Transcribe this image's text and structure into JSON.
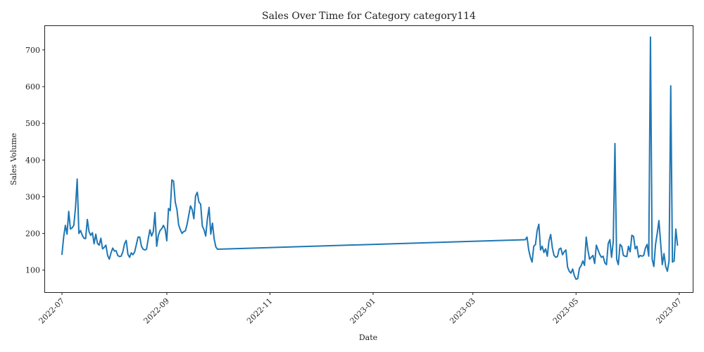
{
  "chart_data": {
    "type": "line",
    "title": "Sales Over Time for Category category114",
    "xlabel": "Date",
    "ylabel": "Sales Volume",
    "xlim": [
      "2022-06-21",
      "2023-07-09"
    ],
    "ylim": [
      40,
      765
    ],
    "x_ticks": [
      "2022-07-01",
      "2022-09-01",
      "2022-11-01",
      "2023-01-01",
      "2023-03-01",
      "2023-05-01",
      "2023-07-01"
    ],
    "x_tick_labels": [
      "2022-07",
      "2022-09",
      "2022-11",
      "2023-01",
      "2023-03",
      "2023-05",
      "2023-07"
    ],
    "y_ticks": [
      100,
      200,
      300,
      400,
      500,
      600,
      700
    ],
    "y_tick_labels": [
      "100",
      "200",
      "300",
      "400",
      "500",
      "600",
      "700"
    ],
    "grid": false,
    "series": [
      {
        "color": "#1f77b4",
        "points": [
          [
            "2022-07-01",
            143
          ],
          [
            "2022-07-02",
            190
          ],
          [
            "2022-07-03",
            222
          ],
          [
            "2022-07-04",
            198
          ],
          [
            "2022-07-05",
            260
          ],
          [
            "2022-07-06",
            212
          ],
          [
            "2022-07-07",
            215
          ],
          [
            "2022-07-08",
            222
          ],
          [
            "2022-07-09",
            270
          ],
          [
            "2022-07-10",
            348
          ],
          [
            "2022-07-11",
            200
          ],
          [
            "2022-07-12",
            208
          ],
          [
            "2022-07-13",
            195
          ],
          [
            "2022-07-14",
            187
          ],
          [
            "2022-07-15",
            186
          ],
          [
            "2022-07-16",
            238
          ],
          [
            "2022-07-17",
            205
          ],
          [
            "2022-07-18",
            195
          ],
          [
            "2022-07-19",
            202
          ],
          [
            "2022-07-20",
            172
          ],
          [
            "2022-07-21",
            198
          ],
          [
            "2022-07-22",
            173
          ],
          [
            "2022-07-23",
            168
          ],
          [
            "2022-07-24",
            187
          ],
          [
            "2022-07-25",
            158
          ],
          [
            "2022-07-26",
            162
          ],
          [
            "2022-07-27",
            168
          ],
          [
            "2022-07-28",
            140
          ],
          [
            "2022-07-29",
            130
          ],
          [
            "2022-07-30",
            147
          ],
          [
            "2022-07-31",
            160
          ],
          [
            "2022-08-01",
            152
          ],
          [
            "2022-08-02",
            153
          ],
          [
            "2022-08-03",
            140
          ],
          [
            "2022-08-04",
            137
          ],
          [
            "2022-08-05",
            138
          ],
          [
            "2022-08-06",
            150
          ],
          [
            "2022-08-07",
            172
          ],
          [
            "2022-08-08",
            181
          ],
          [
            "2022-08-09",
            143
          ],
          [
            "2022-08-10",
            135
          ],
          [
            "2022-08-11",
            147
          ],
          [
            "2022-08-12",
            142
          ],
          [
            "2022-08-13",
            150
          ],
          [
            "2022-08-14",
            170
          ],
          [
            "2022-08-15",
            190
          ],
          [
            "2022-08-16",
            190
          ],
          [
            "2022-08-17",
            165
          ],
          [
            "2022-08-18",
            157
          ],
          [
            "2022-08-19",
            155
          ],
          [
            "2022-08-20",
            157
          ],
          [
            "2022-08-21",
            185
          ],
          [
            "2022-08-22",
            210
          ],
          [
            "2022-08-23",
            193
          ],
          [
            "2022-08-24",
            205
          ],
          [
            "2022-08-25",
            257
          ],
          [
            "2022-08-26",
            165
          ],
          [
            "2022-08-27",
            195
          ],
          [
            "2022-08-28",
            208
          ],
          [
            "2022-08-29",
            213
          ],
          [
            "2022-08-30",
            222
          ],
          [
            "2022-08-31",
            212
          ],
          [
            "2022-09-01",
            180
          ],
          [
            "2022-09-02",
            268
          ],
          [
            "2022-09-03",
            262
          ],
          [
            "2022-09-04",
            346
          ],
          [
            "2022-09-05",
            342
          ],
          [
            "2022-09-06",
            285
          ],
          [
            "2022-09-07",
            265
          ],
          [
            "2022-09-08",
            223
          ],
          [
            "2022-09-09",
            210
          ],
          [
            "2022-09-10",
            200
          ],
          [
            "2022-09-11",
            205
          ],
          [
            "2022-09-12",
            207
          ],
          [
            "2022-09-13",
            225
          ],
          [
            "2022-09-14",
            250
          ],
          [
            "2022-09-15",
            275
          ],
          [
            "2022-09-16",
            265
          ],
          [
            "2022-09-17",
            240
          ],
          [
            "2022-09-18",
            302
          ],
          [
            "2022-09-19",
            312
          ],
          [
            "2022-09-20",
            285
          ],
          [
            "2022-09-21",
            280
          ],
          [
            "2022-09-22",
            220
          ],
          [
            "2022-09-23",
            210
          ],
          [
            "2022-09-24",
            193
          ],
          [
            "2022-09-25",
            240
          ],
          [
            "2022-09-26",
            271
          ],
          [
            "2022-09-27",
            198
          ],
          [
            "2022-09-28",
            228
          ],
          [
            "2022-09-29",
            185
          ],
          [
            "2022-09-30",
            163
          ],
          [
            "2022-10-01",
            157
          ],
          [
            "2023-04-01",
            183
          ],
          [
            "2023-04-02",
            190
          ],
          [
            "2023-04-03",
            155
          ],
          [
            "2023-04-04",
            135
          ],
          [
            "2023-04-05",
            122
          ],
          [
            "2023-04-06",
            165
          ],
          [
            "2023-04-07",
            170
          ],
          [
            "2023-04-08",
            208
          ],
          [
            "2023-04-09",
            225
          ],
          [
            "2023-04-10",
            155
          ],
          [
            "2023-04-11",
            165
          ],
          [
            "2023-04-12",
            148
          ],
          [
            "2023-04-13",
            158
          ],
          [
            "2023-04-14",
            138
          ],
          [
            "2023-04-15",
            180
          ],
          [
            "2023-04-16",
            197
          ],
          [
            "2023-04-17",
            160
          ],
          [
            "2023-04-18",
            140
          ],
          [
            "2023-04-19",
            135
          ],
          [
            "2023-04-20",
            137
          ],
          [
            "2023-04-21",
            157
          ],
          [
            "2023-04-22",
            160
          ],
          [
            "2023-04-23",
            142
          ],
          [
            "2023-04-24",
            150
          ],
          [
            "2023-04-25",
            155
          ],
          [
            "2023-04-26",
            108
          ],
          [
            "2023-04-27",
            97
          ],
          [
            "2023-04-28",
            92
          ],
          [
            "2023-04-29",
            103
          ],
          [
            "2023-04-30",
            85
          ],
          [
            "2023-05-01",
            75
          ],
          [
            "2023-05-02",
            77
          ],
          [
            "2023-05-03",
            105
          ],
          [
            "2023-05-04",
            112
          ],
          [
            "2023-05-05",
            125
          ],
          [
            "2023-05-06",
            113
          ],
          [
            "2023-05-07",
            190
          ],
          [
            "2023-05-08",
            155
          ],
          [
            "2023-05-09",
            130
          ],
          [
            "2023-05-10",
            135
          ],
          [
            "2023-05-11",
            140
          ],
          [
            "2023-05-12",
            118
          ],
          [
            "2023-05-13",
            168
          ],
          [
            "2023-05-14",
            155
          ],
          [
            "2023-05-15",
            143
          ],
          [
            "2023-05-16",
            135
          ],
          [
            "2023-05-17",
            138
          ],
          [
            "2023-05-18",
            120
          ],
          [
            "2023-05-19",
            115
          ],
          [
            "2023-05-20",
            172
          ],
          [
            "2023-05-21",
            183
          ],
          [
            "2023-05-22",
            135
          ],
          [
            "2023-05-23",
            178
          ],
          [
            "2023-05-24",
            445
          ],
          [
            "2023-05-25",
            130
          ],
          [
            "2023-05-26",
            115
          ],
          [
            "2023-05-27",
            170
          ],
          [
            "2023-05-28",
            165
          ],
          [
            "2023-05-29",
            140
          ],
          [
            "2023-05-30",
            138
          ],
          [
            "2023-05-31",
            137
          ],
          [
            "2023-06-01",
            165
          ],
          [
            "2023-06-02",
            150
          ],
          [
            "2023-06-03",
            195
          ],
          [
            "2023-06-04",
            192
          ],
          [
            "2023-06-05",
            158
          ],
          [
            "2023-06-06",
            165
          ],
          [
            "2023-06-07",
            135
          ],
          [
            "2023-06-08",
            140
          ],
          [
            "2023-06-09",
            138
          ],
          [
            "2023-06-10",
            140
          ],
          [
            "2023-06-11",
            160
          ],
          [
            "2023-06-12",
            170
          ],
          [
            "2023-06-13",
            138
          ],
          [
            "2023-06-14",
            735
          ],
          [
            "2023-06-15",
            130
          ],
          [
            "2023-06-16",
            110
          ],
          [
            "2023-06-17",
            170
          ],
          [
            "2023-06-18",
            200
          ],
          [
            "2023-06-19",
            235
          ],
          [
            "2023-06-20",
            175
          ],
          [
            "2023-06-21",
            115
          ],
          [
            "2023-06-22",
            145
          ],
          [
            "2023-06-23",
            110
          ],
          [
            "2023-06-24",
            97
          ],
          [
            "2023-06-25",
            125
          ],
          [
            "2023-06-26",
            602
          ],
          [
            "2023-06-27",
            122
          ],
          [
            "2023-06-28",
            125
          ],
          [
            "2023-06-29",
            212
          ],
          [
            "2023-06-30",
            168
          ]
        ]
      }
    ]
  }
}
